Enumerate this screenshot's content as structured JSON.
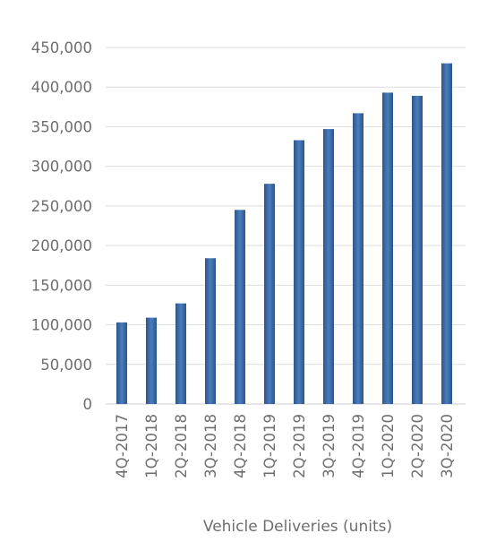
{
  "chart_data": {
    "type": "bar",
    "title": "",
    "xlabel": "Vehicle Deliveries (units)",
    "ylabel": "",
    "categories": [
      "4Q-2017",
      "1Q-2018",
      "2Q-2018",
      "3Q-2018",
      "4Q-2018",
      "1Q-2019",
      "2Q-2019",
      "3Q-2019",
      "4Q-2019",
      "1Q-2020",
      "2Q-2020",
      "3Q-2020"
    ],
    "values": [
      103000,
      109000,
      127000,
      184000,
      245000,
      278000,
      333000,
      347000,
      367000,
      393000,
      389000,
      430000
    ],
    "ylim": [
      0,
      450000
    ],
    "y_ticks": [
      0,
      50000,
      100000,
      150000,
      200000,
      250000,
      300000,
      350000,
      400000,
      450000
    ],
    "y_tick_labels": [
      "0",
      "50,000",
      "100,000",
      "150,000",
      "200,000",
      "250,000",
      "300,000",
      "350,000",
      "400,000",
      "450,000"
    ],
    "grid": true,
    "legend": "none",
    "colors": {
      "bar_light": "#4a7ec0",
      "bar_dark": "#2e5486",
      "grid": "#dedede",
      "text": "#6e6e6e"
    }
  }
}
